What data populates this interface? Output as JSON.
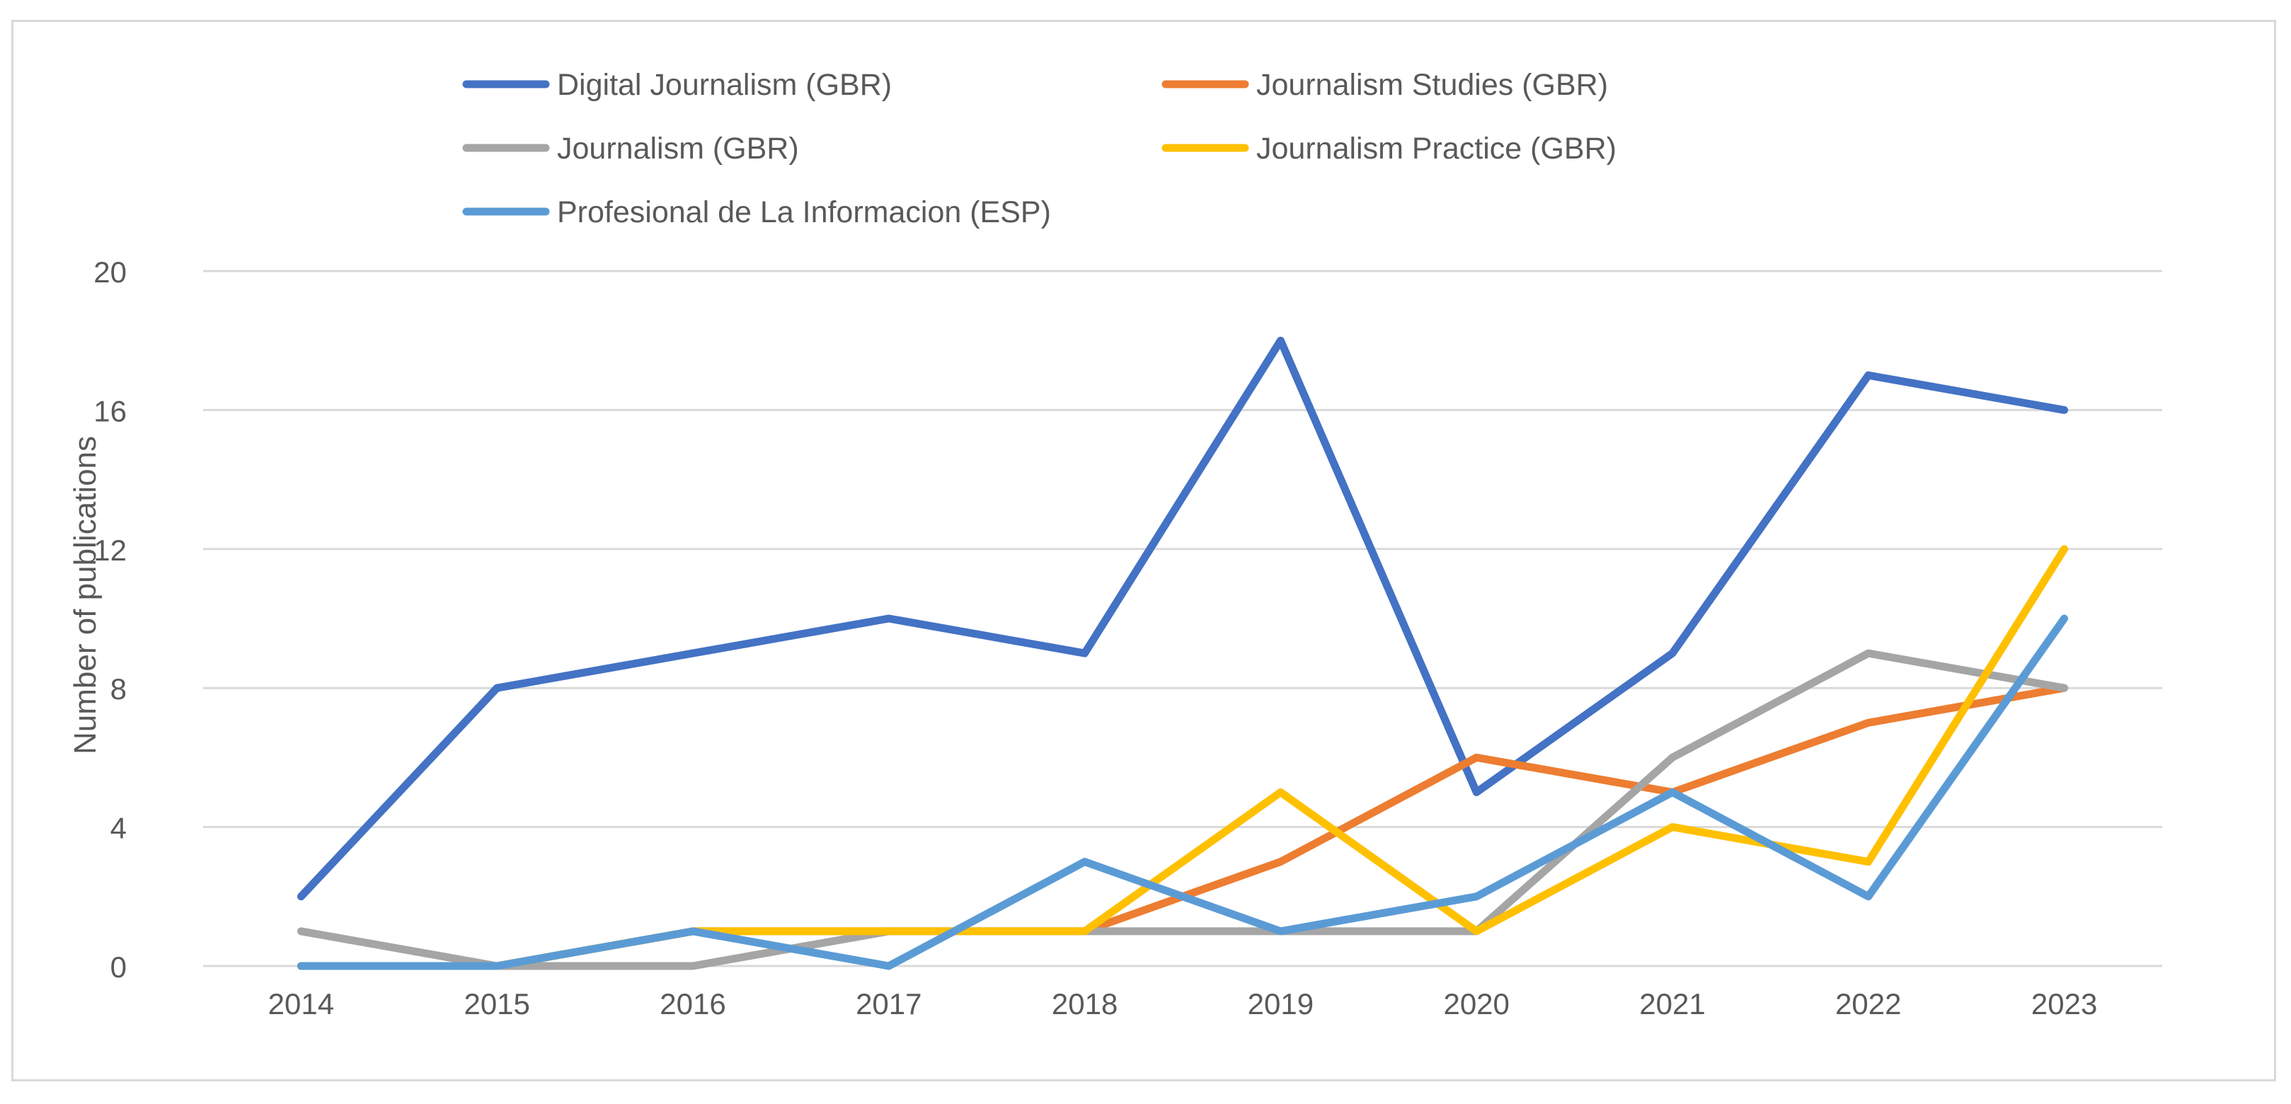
{
  "chart_data": {
    "type": "line",
    "title": "",
    "xlabel": "",
    "ylabel": "Number of publications",
    "categories": [
      "2014",
      "2015",
      "2016",
      "2017",
      "2018",
      "2019",
      "2020",
      "2021",
      "2022",
      "2023"
    ],
    "ylim": [
      0,
      20
    ],
    "yticks": [
      0,
      4,
      8,
      12,
      16,
      20
    ],
    "grid": true,
    "legend_position": "top",
    "series": [
      {
        "name": "Digital Journalism (GBR)",
        "color": "#4472c4",
        "values": [
          2,
          8,
          9,
          10,
          9,
          18,
          5,
          9,
          17,
          16
        ]
      },
      {
        "name": "Journalism Studies (GBR)",
        "color": "#ed7d31",
        "values": [
          0,
          0,
          1,
          1,
          1,
          3,
          6,
          5,
          7,
          8
        ]
      },
      {
        "name": "Journalism (GBR)",
        "color": "#a5a5a5",
        "values": [
          1,
          0,
          0,
          1,
          1,
          1,
          1,
          6,
          9,
          8
        ]
      },
      {
        "name": "Journalism Practice (GBR)",
        "color": "#ffc000",
        "values": [
          0,
          0,
          1,
          1,
          1,
          5,
          1,
          4,
          3,
          12
        ]
      },
      {
        "name": "Profesional de La Informacion (ESP)",
        "color": "#5b9bd5",
        "values": [
          0,
          0,
          1,
          0,
          3,
          1,
          2,
          5,
          2,
          10
        ]
      }
    ]
  }
}
